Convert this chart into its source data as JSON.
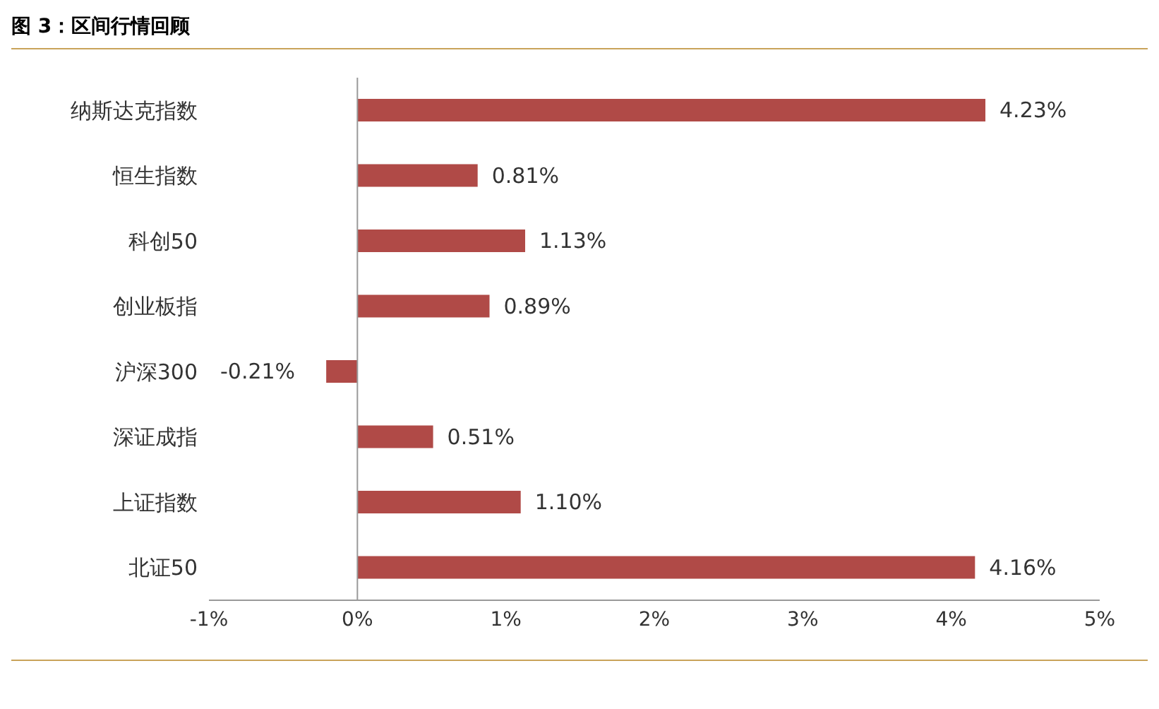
{
  "chart_data": {
    "type": "bar",
    "orientation": "horizontal",
    "title": "图 3：区间行情回顾",
    "categories": [
      "纳斯达克指数",
      "恒生指数",
      "科创50",
      "创业板指",
      "沪深300",
      "深证成指",
      "上证指数",
      "北证50"
    ],
    "values": [
      4.23,
      0.81,
      1.13,
      0.89,
      -0.21,
      0.51,
      1.1,
      4.16
    ],
    "value_labels": [
      "4.23%",
      "0.81%",
      "1.13%",
      "0.89%",
      "-0.21%",
      "0.51%",
      "1.10%",
      "4.16%"
    ],
    "color": "#b04a47",
    "xlim": [
      -1,
      5
    ],
    "xticks": [
      {
        "value": -1,
        "label": "-1%"
      },
      {
        "value": 0,
        "label": "0%"
      },
      {
        "value": 1,
        "label": "1%"
      },
      {
        "value": 2,
        "label": "2%"
      },
      {
        "value": 3,
        "label": "3%"
      },
      {
        "value": 4,
        "label": "4%"
      },
      {
        "value": 5,
        "label": "5%"
      }
    ],
    "legend": false
  }
}
